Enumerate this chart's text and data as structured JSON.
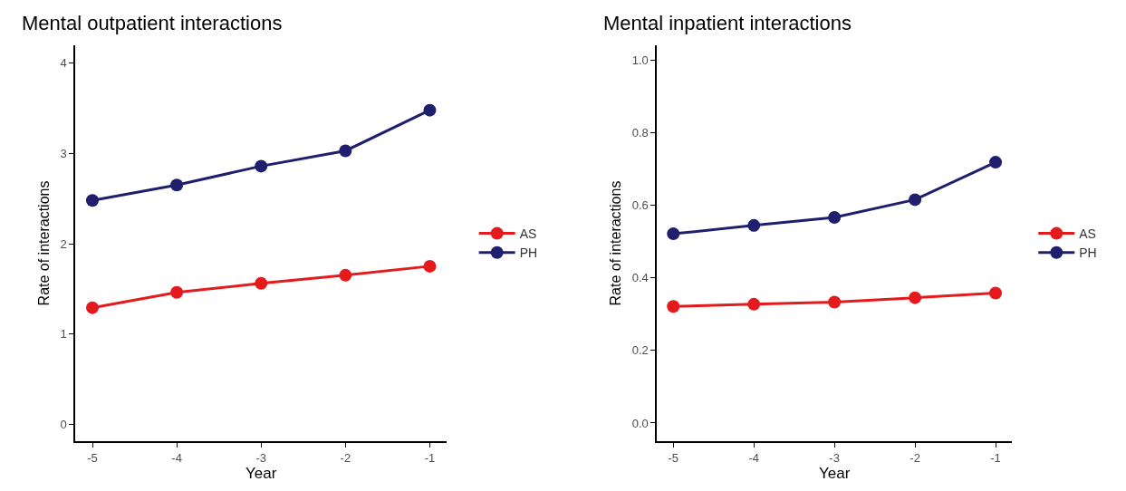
{
  "chart_data": [
    {
      "type": "line",
      "title": "Mental outpatient interactions",
      "xlabel": "Year",
      "ylabel": "Rate of interactions",
      "x": [
        -5,
        -4,
        -3,
        -2,
        -1
      ],
      "series": [
        {
          "name": "AS",
          "color": "#e41a1c",
          "values": [
            1.29,
            1.46,
            1.56,
            1.65,
            1.75
          ]
        },
        {
          "name": "PH",
          "color": "#1f1f6e",
          "values": [
            2.48,
            2.65,
            2.86,
            3.03,
            3.48
          ]
        }
      ],
      "xlim": [
        -5.2,
        -0.8
      ],
      "xticks": [
        -5,
        -4,
        -3,
        -2,
        -1
      ],
      "ylim": [
        -0.19,
        4.2
      ],
      "yticks": [
        0,
        1,
        2,
        3,
        4
      ],
      "legend": "right",
      "marker": "circle",
      "line_style": "solid"
    },
    {
      "type": "line",
      "title": "Mental inpatient interactions",
      "xlabel": "Year",
      "ylabel": "Rate of interactions",
      "x": [
        -5,
        -4,
        -3,
        -2,
        -1
      ],
      "series": [
        {
          "name": "AS",
          "color": "#e41a1c",
          "values": [
            0.321,
            0.327,
            0.333,
            0.345,
            0.358
          ]
        },
        {
          "name": "PH",
          "color": "#1f1f6e",
          "values": [
            0.521,
            0.544,
            0.566,
            0.615,
            0.718
          ]
        }
      ],
      "xlim": [
        -5.2,
        -0.8
      ],
      "xticks": [
        -5,
        -4,
        -3,
        -2,
        -1
      ],
      "ylim": [
        -0.05,
        1.04
      ],
      "yticks": [
        {
          "value": 0,
          "label": "0.0"
        },
        {
          "value": 0.2,
          "label": "0.2"
        },
        {
          "value": 0.4,
          "label": "0.4"
        },
        {
          "value": 0.6,
          "label": "0.6"
        },
        {
          "value": 0.8,
          "label": "0.8"
        },
        {
          "value": 1,
          "label": "1.0"
        }
      ],
      "legend": "right",
      "marker": "circle",
      "line_style": "solid"
    }
  ]
}
